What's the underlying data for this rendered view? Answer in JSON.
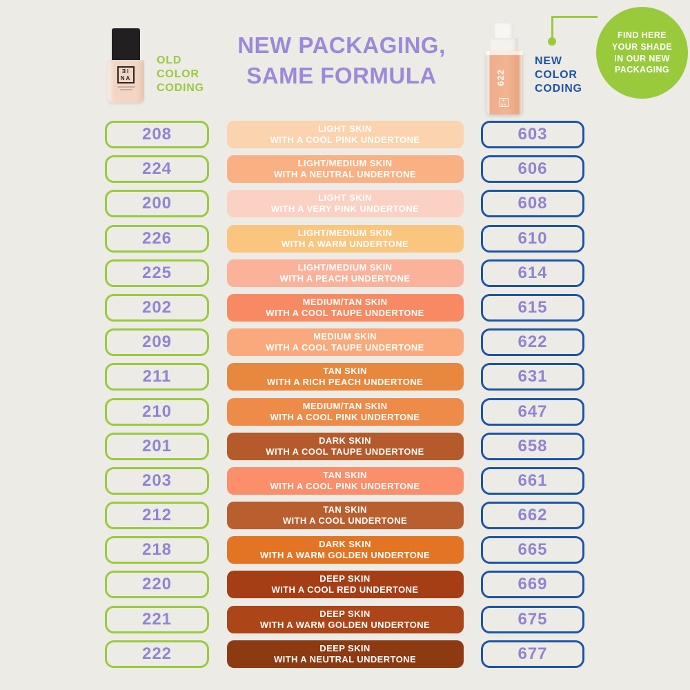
{
  "theme": {
    "background": "#ECEBE6",
    "green": "#99CA3C",
    "blue": "#1C54A6",
    "purple_numbers": "#9184D1",
    "purple_title": "#9D89D9"
  },
  "header": {
    "title_line1": "NEW PACKAGING,",
    "title_line2": "SAME FORMULA",
    "old_coding_label": "OLD\nCOLOR\nCODING",
    "new_coding_label": "NEW\nCOLOR\nCODING",
    "badge_text": "FIND HERE\nYOUR SHADE\nIN OUR NEW\nPACKAGING"
  },
  "bottles": {
    "old": {
      "logo_top": "ƎI",
      "logo_bottom": "NA"
    },
    "new": {
      "shade_code": "622",
      "logo_top": "ƎI",
      "logo_bottom": "NA"
    }
  },
  "table": {
    "rows": [
      {
        "old_code": "208",
        "skin": "LIGHT SKIN",
        "undertone": "WITH A COOL PINK UNDERTONE",
        "swatch_color": "#FBD3AE",
        "new_code": "603"
      },
      {
        "old_code": "224",
        "skin": "LIGHT/MEDIUM SKIN",
        "undertone": "WITH A NEUTRAL UNDERTONE",
        "swatch_color": "#F9B183",
        "new_code": "606"
      },
      {
        "old_code": "200",
        "skin": "LIGHT SKIN",
        "undertone": "WITH A VERY PINK UNDERTONE",
        "swatch_color": "#FAD1C2",
        "new_code": "608"
      },
      {
        "old_code": "226",
        "skin": "LIGHT/MEDIUM SKIN",
        "undertone": "WITH A WARM UNDERTONE",
        "swatch_color": "#FAC57F",
        "new_code": "610"
      },
      {
        "old_code": "225",
        "skin": "LIGHT/MEDIUM SKIN",
        "undertone": "WITH A PEACH UNDERTONE",
        "swatch_color": "#FAB29B",
        "new_code": "614"
      },
      {
        "old_code": "202",
        "skin": "MEDIUM/TAN SKIN",
        "undertone": "WITH A COOL TAUPE UNDERTONE",
        "swatch_color": "#F78A62",
        "new_code": "615"
      },
      {
        "old_code": "209",
        "skin": "MEDIUM SKIN",
        "undertone": "WITH A COOL TAUPE UNDERTONE",
        "swatch_color": "#F9A97B",
        "new_code": "622"
      },
      {
        "old_code": "211",
        "skin": "TAN SKIN",
        "undertone": "WITH A RICH PEACH UNDERTONE",
        "swatch_color": "#E8873E",
        "new_code": "631"
      },
      {
        "old_code": "210",
        "skin": "MEDIUM/TAN SKIN",
        "undertone": "WITH A COOL PINK UNDERTONE",
        "swatch_color": "#EE8B49",
        "new_code": "647"
      },
      {
        "old_code": "201",
        "skin": "DARK SKIN",
        "undertone": "WITH A COOL TAUPE UNDERTONE",
        "swatch_color": "#B55A2B",
        "new_code": "658"
      },
      {
        "old_code": "203",
        "skin": "TAN SKIN",
        "undertone": "WITH A COOL PINK UNDERTONE",
        "swatch_color": "#FB8E6B",
        "new_code": "661"
      },
      {
        "old_code": "212",
        "skin": "TAN SKIN",
        "undertone": "WITH A COOL UNDERTONE",
        "swatch_color": "#B95E2F",
        "new_code": "662"
      },
      {
        "old_code": "218",
        "skin": "DARK SKIN",
        "undertone": "WITH A WARM GOLDEN UNDERTONE",
        "swatch_color": "#E37424",
        "new_code": "665"
      },
      {
        "old_code": "220",
        "skin": "DEEP SKIN",
        "undertone": "WITH A COOL RED UNDERTONE",
        "swatch_color": "#A63E15",
        "new_code": "669"
      },
      {
        "old_code": "221",
        "skin": "DEEP SKIN",
        "undertone": "WITH A WARM GOLDEN UNDERTONE",
        "swatch_color": "#AC4517",
        "new_code": "675"
      },
      {
        "old_code": "222",
        "skin": "DEEP SKIN",
        "undertone": "WITH A NEUTRAL UNDERTONE",
        "swatch_color": "#8D3A12",
        "new_code": "677"
      }
    ]
  }
}
